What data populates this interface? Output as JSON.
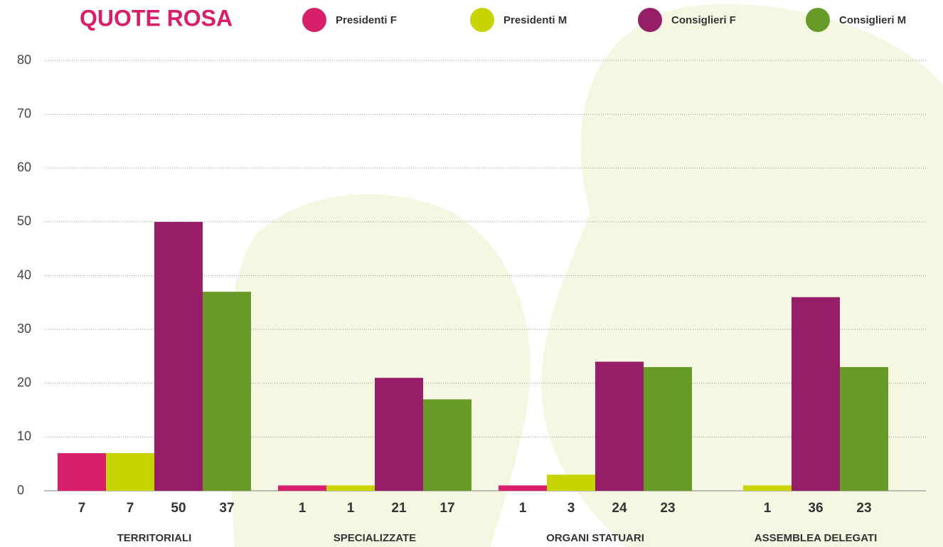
{
  "chart_data": {
    "type": "bar",
    "title": "QUOTE ROSA",
    "categories": [
      "TERRITORIALI",
      "SPECIALIZZATE",
      "ORGANI STATUARI",
      "ASSEMBLEA DELEGATI"
    ],
    "series": [
      {
        "name": "Presidenti F",
        "color": "#d81f6b",
        "values": [
          7,
          1,
          1,
          null
        ]
      },
      {
        "name": "Presidenti M",
        "color": "#c8d400",
        "values": [
          7,
          1,
          3,
          1
        ]
      },
      {
        "name": "Consiglieri F",
        "color": "#961e66",
        "values": [
          50,
          21,
          24,
          36
        ]
      },
      {
        "name": "Consiglieri M",
        "color": "#689a27",
        "values": [
          37,
          17,
          23,
          23
        ]
      }
    ],
    "ylim": [
      0,
      80
    ],
    "yticks": [
      0,
      10,
      20,
      30,
      40,
      50,
      60,
      70,
      80
    ],
    "grid": true,
    "legend": "top"
  }
}
